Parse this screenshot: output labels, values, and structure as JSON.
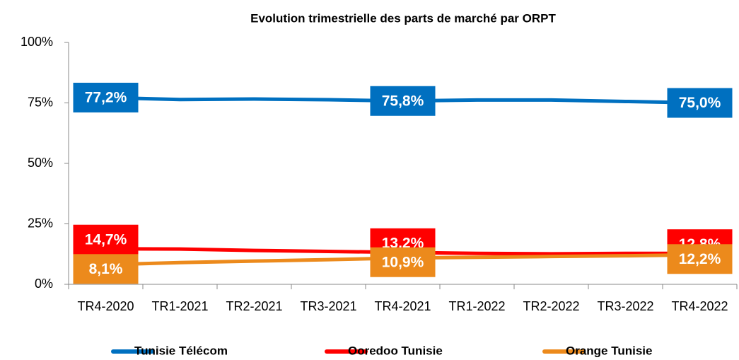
{
  "chart_data": {
    "type": "line",
    "title": "Evolution trimestrielle des parts de marché par ORPT",
    "categories": [
      "TR4-2020",
      "TR1-2021",
      "TR2-2021",
      "TR3-2021",
      "TR4-2021",
      "TR1-2022",
      "TR2-2022",
      "TR3-2022",
      "TR4-2022"
    ],
    "series": [
      {
        "name": "Tunisie Télécom",
        "color": "#0070c0",
        "values": [
          77.2,
          76.4,
          76.6,
          76.3,
          75.8,
          76.2,
          76.2,
          75.6,
          75.0
        ],
        "value_labels": [
          "77,2%",
          null,
          null,
          null,
          "75,8%",
          null,
          null,
          null,
          "75,0%"
        ]
      },
      {
        "name": "Ooredoo Tunisie",
        "color": "#ff0000",
        "values": [
          14.7,
          14.6,
          14.0,
          13.6,
          13.2,
          12.8,
          12.6,
          12.8,
          12.8
        ],
        "value_labels": [
          "14,7%",
          null,
          null,
          null,
          "13,2%",
          null,
          null,
          null,
          "12,8%"
        ]
      },
      {
        "name": "Orange Tunisie",
        "color": "#ec8a1c",
        "values": [
          8.1,
          9.0,
          9.6,
          10.2,
          10.9,
          11.2,
          11.5,
          11.8,
          12.2
        ],
        "value_labels": [
          "8,1%",
          null,
          null,
          null,
          "10,9%",
          null,
          null,
          null,
          "12,2%"
        ]
      }
    ],
    "ylim": [
      0,
      100
    ],
    "yticks": [
      {
        "value": 0,
        "label": "0%"
      },
      {
        "value": 25,
        "label": "25%"
      },
      {
        "value": 50,
        "label": "50%"
      },
      {
        "value": 75,
        "label": "75%"
      },
      {
        "value": 100,
        "label": "100%"
      }
    ],
    "legend": "bottom"
  }
}
